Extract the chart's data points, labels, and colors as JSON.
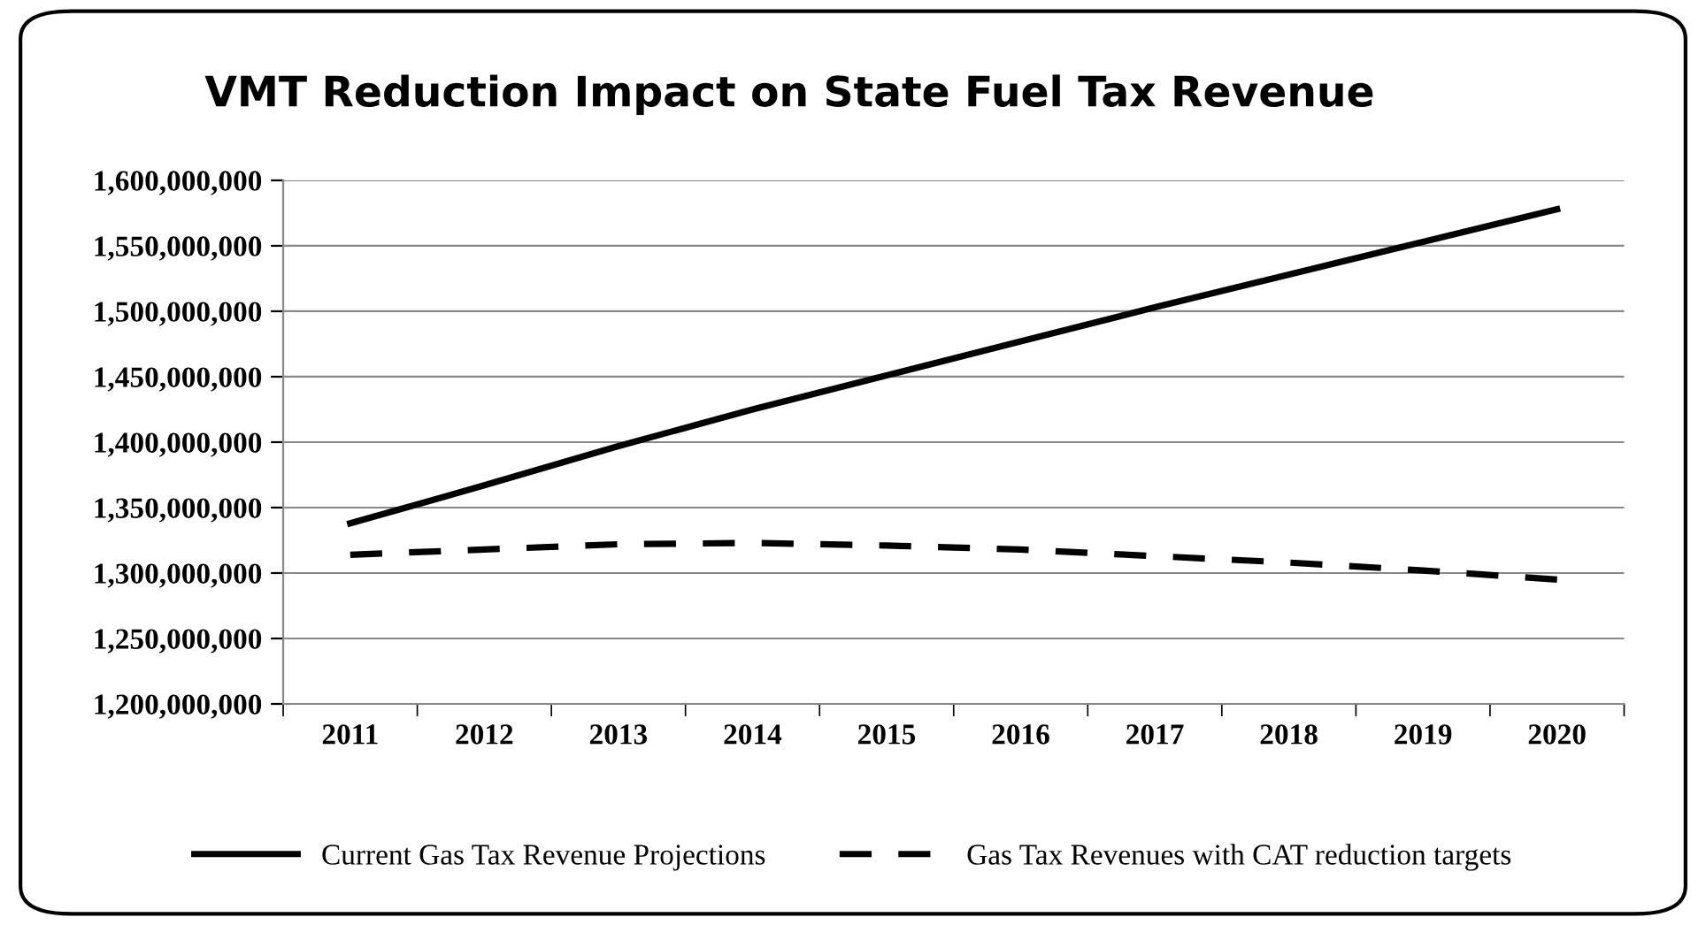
{
  "chart_data": {
    "type": "line",
    "title": "VMT Reduction Impact on State Fuel Tax Revenue",
    "categories": [
      "2011",
      "2012",
      "2013",
      "2014",
      "2015",
      "2016",
      "2017",
      "2018",
      "2019",
      "2020"
    ],
    "series": [
      {
        "name": "Current Gas Tax Revenue Projections",
        "color": "#000000",
        "line_style": "solid",
        "values": [
          1338000000,
          1367000000,
          1397000000,
          1425000000,
          1451000000,
          1477000000,
          1503000000,
          1528000000,
          1553000000,
          1578000000
        ]
      },
      {
        "name": "Gas Tax Revenues with CAT reduction targets",
        "color": "#000000",
        "line_style": "dashed",
        "values": [
          1314000000,
          1318000000,
          1322000000,
          1323000000,
          1321000000,
          1318000000,
          1313000000,
          1308000000,
          1302000000,
          1295000000
        ]
      }
    ],
    "ylim": [
      1200000000,
      1600000000
    ],
    "yticks": [
      {
        "value": 1200000000,
        "label": "1,200,000,000"
      },
      {
        "value": 1250000000,
        "label": "1,250,000,000"
      },
      {
        "value": 1300000000,
        "label": "1,300,000,000"
      },
      {
        "value": 1350000000,
        "label": "1,350,000,000"
      },
      {
        "value": 1400000000,
        "label": "1,400,000,000"
      },
      {
        "value": 1450000000,
        "label": "1,450,000,000"
      },
      {
        "value": 1500000000,
        "label": "1,500,000,000"
      },
      {
        "value": 1550000000,
        "label": "1,550,000,000"
      },
      {
        "value": 1600000000,
        "label": "1,600,000,000"
      }
    ],
    "grid": "y",
    "legend": "bottom",
    "marker": "none"
  }
}
